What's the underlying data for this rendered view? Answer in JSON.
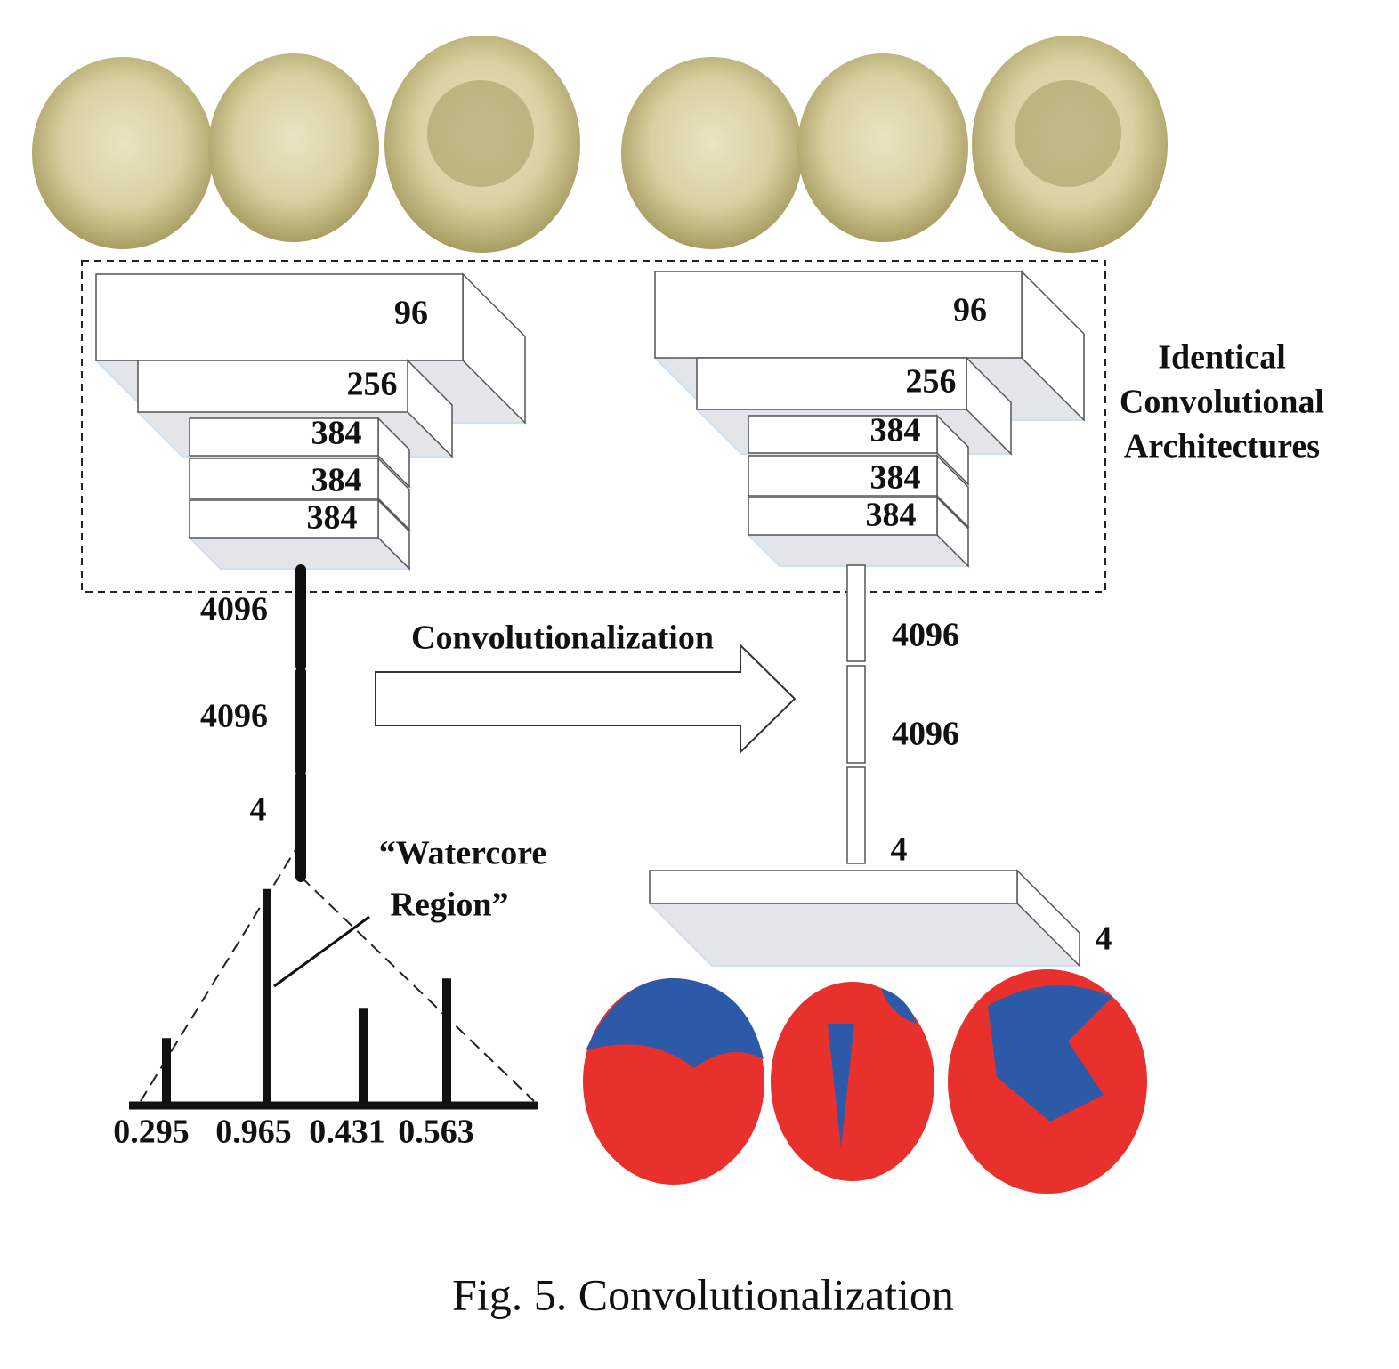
{
  "figure": {
    "left_network": {
      "conv_layers": [
        "96",
        "256",
        "384",
        "384",
        "384"
      ],
      "fc_layers": [
        "4096",
        "4096",
        "4"
      ]
    },
    "right_network": {
      "conv_layers": [
        "96",
        "256",
        "384",
        "384",
        "384"
      ],
      "fc_layers": [
        "4096",
        "4096",
        "4"
      ],
      "output_layer": "4"
    },
    "group_label": [
      "Identical",
      "Convolutional",
      "Architectures"
    ],
    "arrow_label": "Convolutionalization",
    "annotation": [
      "“Watercore",
      "Region”"
    ],
    "scores": [
      0.295,
      0.965,
      0.431,
      0.563
    ]
  },
  "caption": "Fig. 5. Convolutionalization"
}
